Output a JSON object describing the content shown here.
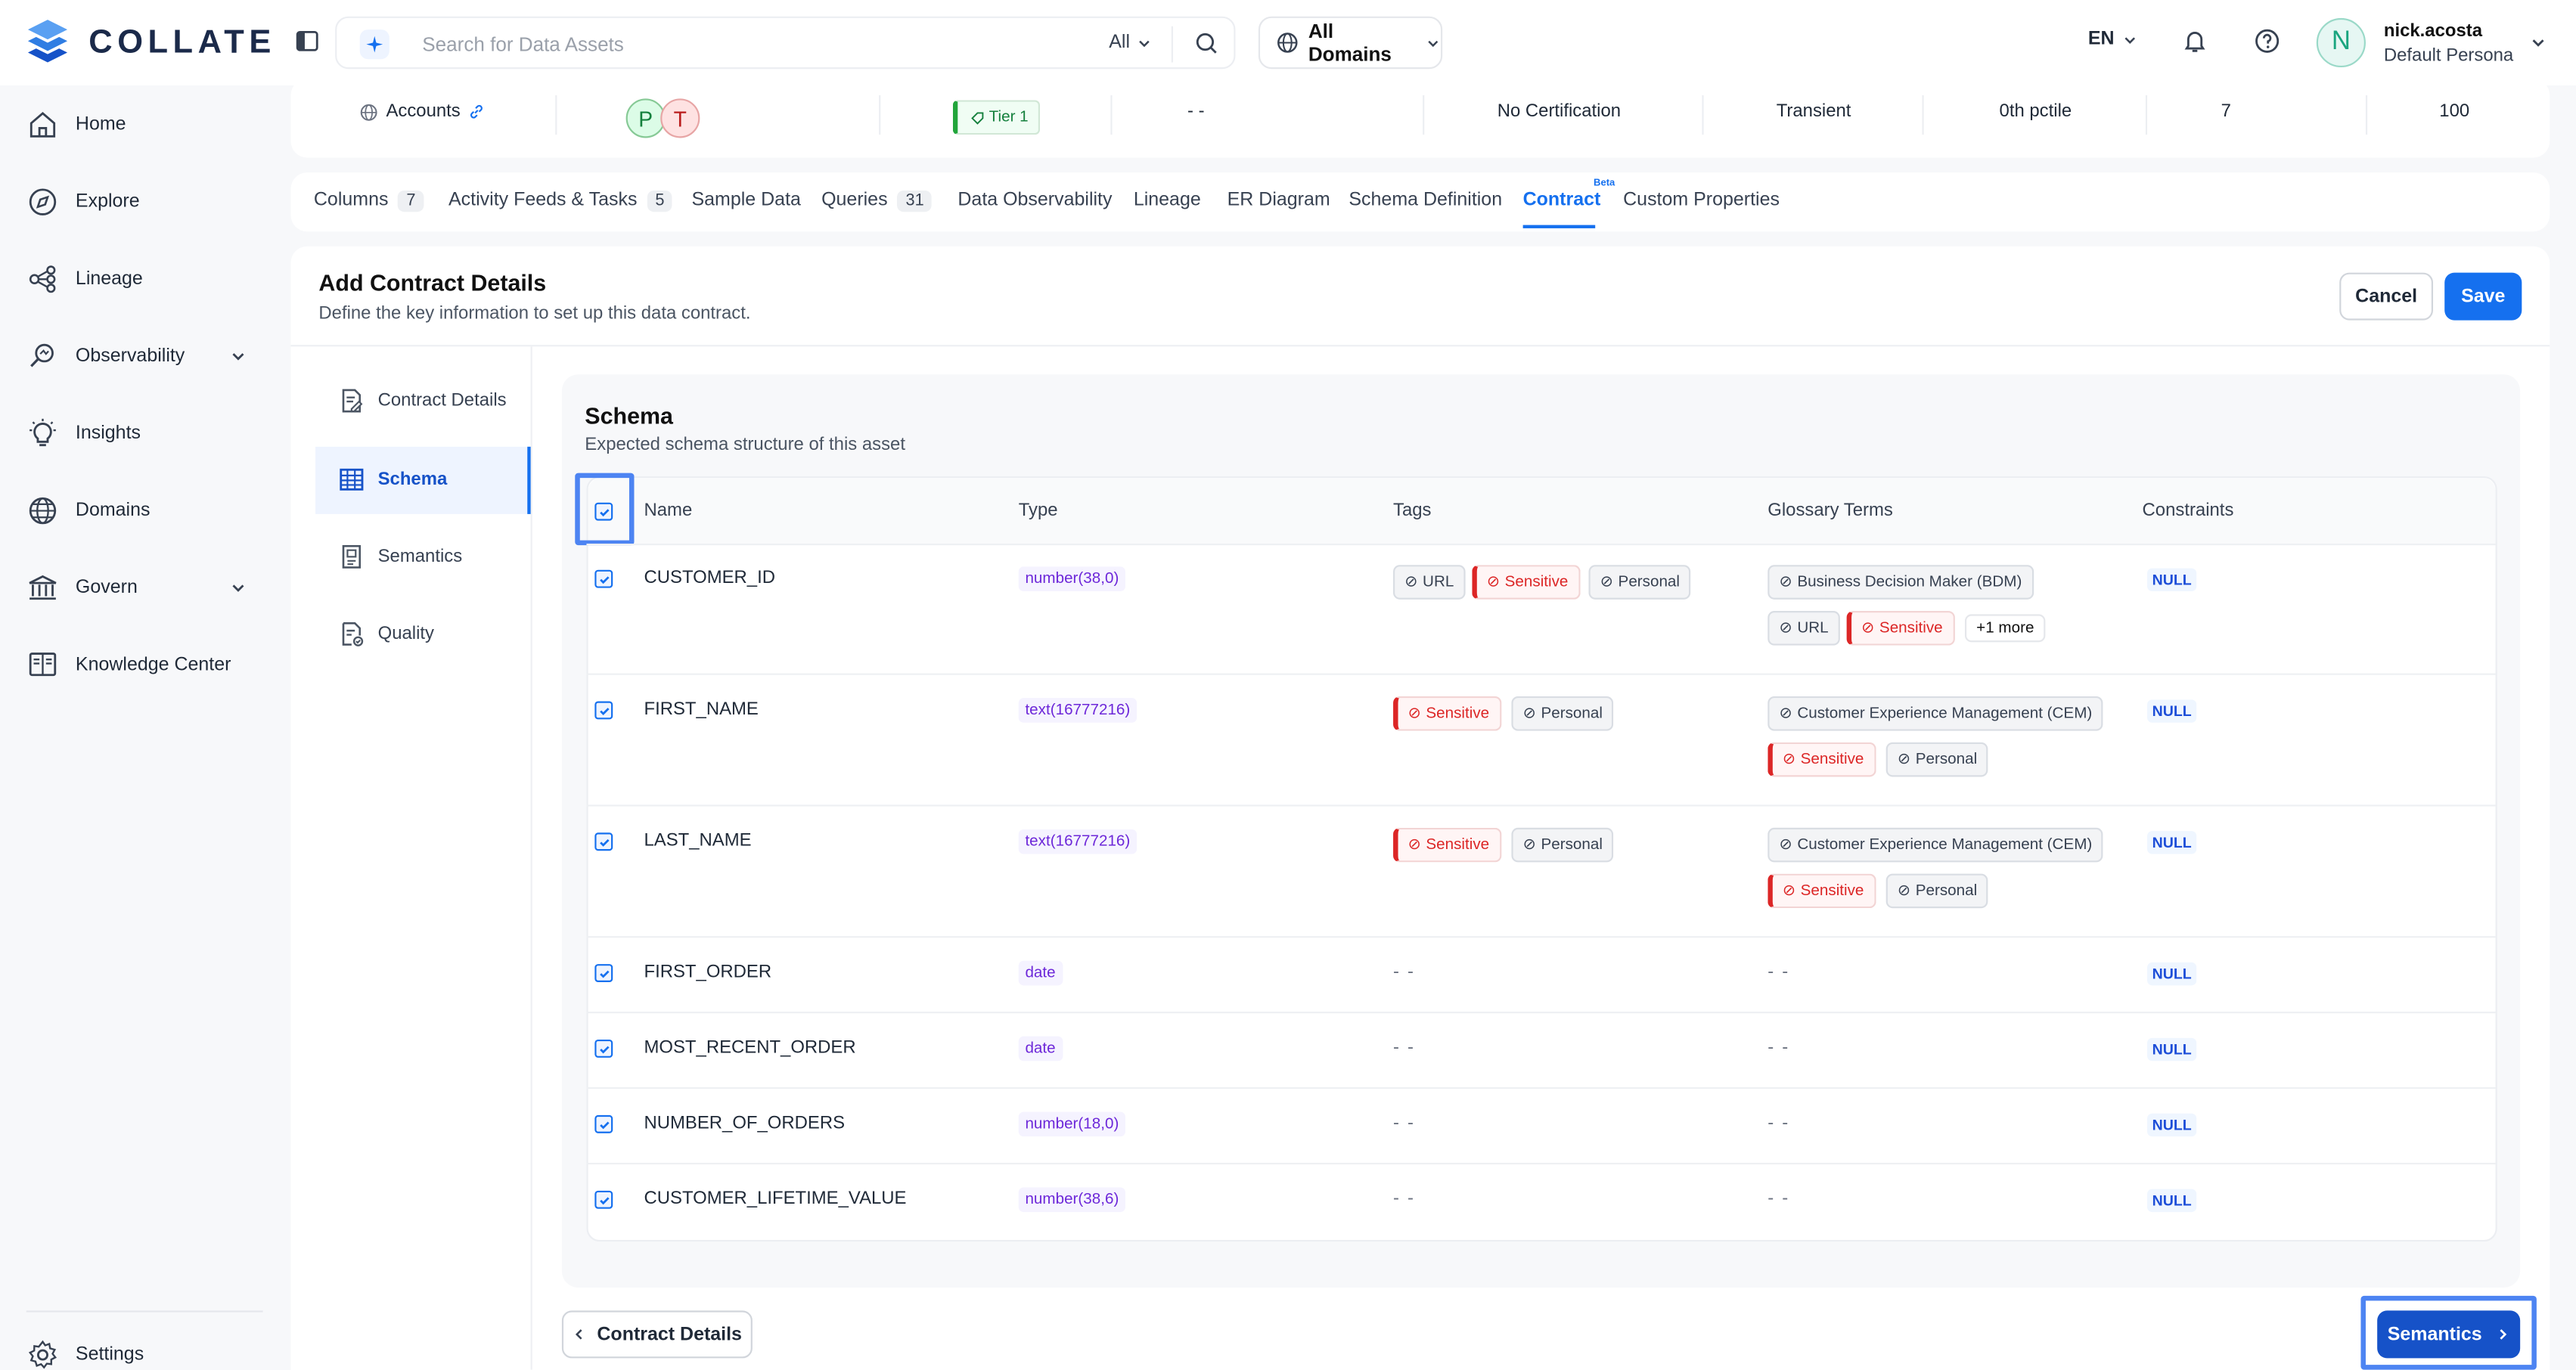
{
  "app": {
    "name": "COLLATE",
    "brand_color": "#1570ef"
  },
  "search": {
    "placeholder": "Search for Data Assets",
    "filter_label": "All"
  },
  "domain_selector": {
    "label": "All Domains"
  },
  "language": {
    "label": "EN"
  },
  "user": {
    "initial": "N",
    "name": "nick.acosta",
    "persona": "Default Persona"
  },
  "sidebar": {
    "items": [
      {
        "label": "Home",
        "icon": "home-icon"
      },
      {
        "label": "Explore",
        "icon": "compass-icon"
      },
      {
        "label": "Lineage",
        "icon": "lineage-icon"
      },
      {
        "label": "Observability",
        "icon": "observability-icon",
        "expandable": true
      },
      {
        "label": "Insights",
        "icon": "bulb-icon"
      },
      {
        "label": "Domains",
        "icon": "globe-icon"
      },
      {
        "label": "Govern",
        "icon": "bank-icon",
        "expandable": true
      },
      {
        "label": "Knowledge Center",
        "icon": "book-icon"
      }
    ],
    "settings_label": "Settings"
  },
  "asset_row": {
    "domain": "Accounts",
    "owners": [
      "P",
      "T"
    ],
    "tier": "Tier 1",
    "dash": "- -",
    "certification": "No Certification",
    "type": "Transient",
    "percentile": "0th pctile",
    "count_a": "7",
    "count_b": "100"
  },
  "tabs": [
    {
      "label": "Columns",
      "count": "7"
    },
    {
      "label": "Activity Feeds & Tasks",
      "count": "5"
    },
    {
      "label": "Sample Data"
    },
    {
      "label": "Queries",
      "count": "31"
    },
    {
      "label": "Data Observability"
    },
    {
      "label": "Lineage"
    },
    {
      "label": "ER Diagram"
    },
    {
      "label": "Schema Definition"
    },
    {
      "label": "Contract",
      "badge": "Beta",
      "active": true
    },
    {
      "label": "Custom Properties"
    }
  ],
  "contract": {
    "title": "Add Contract Details",
    "subtitle": "Define the key information to set up this data contract.",
    "cancel_label": "Cancel",
    "save_label": "Save",
    "steps": [
      {
        "label": "Contract Details"
      },
      {
        "label": "Schema",
        "active": true
      },
      {
        "label": "Semantics"
      },
      {
        "label": "Quality"
      }
    ],
    "schema": {
      "title": "Schema",
      "subtitle": "Expected schema structure of this asset",
      "columns": [
        "Name",
        "Type",
        "Tags",
        "Glossary Terms",
        "Constraints"
      ],
      "rows": [
        {
          "name": "CUSTOMER_ID",
          "type": "number(38,0)",
          "constraint": "NULL",
          "tags": [
            "URL",
            "Sensitive",
            "Personal"
          ],
          "glossary_line1": [
            "Business Decision Maker (BDM)"
          ],
          "glossary_line2": [
            "URL",
            "Sensitive"
          ],
          "more": "+1 more"
        },
        {
          "name": "FIRST_NAME",
          "type": "text(16777216)",
          "constraint": "NULL",
          "tags": [
            "Sensitive",
            "Personal"
          ],
          "glossary_line1": [
            "Customer Experience Management (CEM)"
          ],
          "glossary_line2": [
            "Sensitive",
            "Personal"
          ]
        },
        {
          "name": "LAST_NAME",
          "type": "text(16777216)",
          "constraint": "NULL",
          "tags": [
            "Sensitive",
            "Personal"
          ],
          "glossary_line1": [
            "Customer Experience Management (CEM)"
          ],
          "glossary_line2": [
            "Sensitive",
            "Personal"
          ]
        },
        {
          "name": "FIRST_ORDER",
          "type": "date",
          "constraint": "NULL",
          "tags_empty": "- -",
          "glossary_empty": "- -"
        },
        {
          "name": "MOST_RECENT_ORDER",
          "type": "date",
          "constraint": "NULL",
          "tags_empty": "- -",
          "glossary_empty": "- -"
        },
        {
          "name": "NUMBER_OF_ORDERS",
          "type": "number(18,0)",
          "constraint": "NULL",
          "tags_empty": "- -",
          "glossary_empty": "- -"
        },
        {
          "name": "CUSTOMER_LIFETIME_VALUE",
          "type": "number(38,6)",
          "constraint": "NULL",
          "tags_empty": "- -",
          "glossary_empty": "- -"
        }
      ]
    },
    "back_label": "Contract Details",
    "next_label": "Semantics"
  }
}
